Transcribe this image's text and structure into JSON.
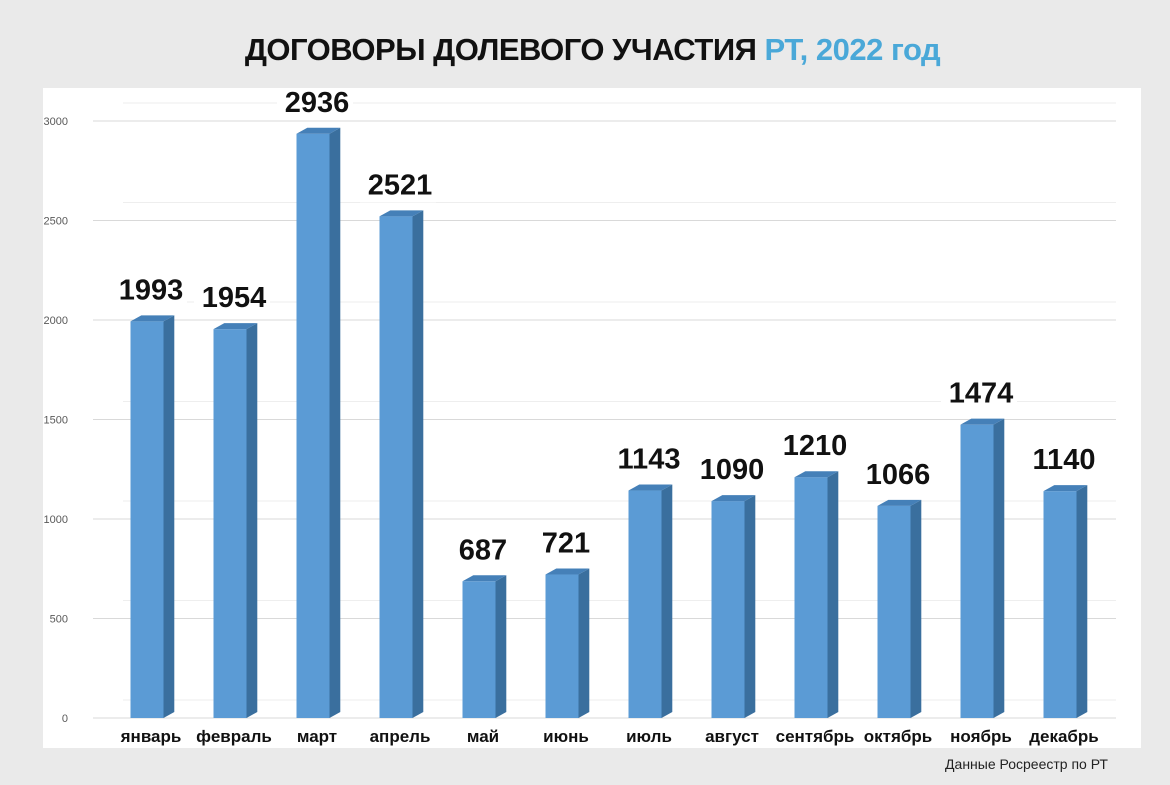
{
  "title": {
    "main": "ДОГОВОРЫ ДОЛЕВОГО УЧАСТИЯ",
    "accent": "РТ, 2022 год"
  },
  "source": "Данные Росреестр по РТ",
  "colors": {
    "bar_front": "#5b9bd5",
    "bar_side": "#3a6f9e",
    "bar_top": "#4580b8",
    "accent": "#4aa8d8",
    "grid": "#d9d9d9"
  },
  "chart_data": {
    "type": "bar",
    "categories": [
      "январь",
      "февраль",
      "март",
      "апрель",
      "май",
      "июнь",
      "июль",
      "август",
      "сентябрь",
      "октябрь",
      "ноябрь",
      "декабрь"
    ],
    "values": [
      1993,
      1954,
      2936,
      2521,
      687,
      721,
      1143,
      1090,
      1210,
      1066,
      1474,
      1140
    ],
    "ylim": [
      0,
      3000
    ],
    "yticks": [
      0,
      500,
      1000,
      1500,
      2000,
      2500,
      3000
    ],
    "grid": true,
    "data_labels": true
  }
}
